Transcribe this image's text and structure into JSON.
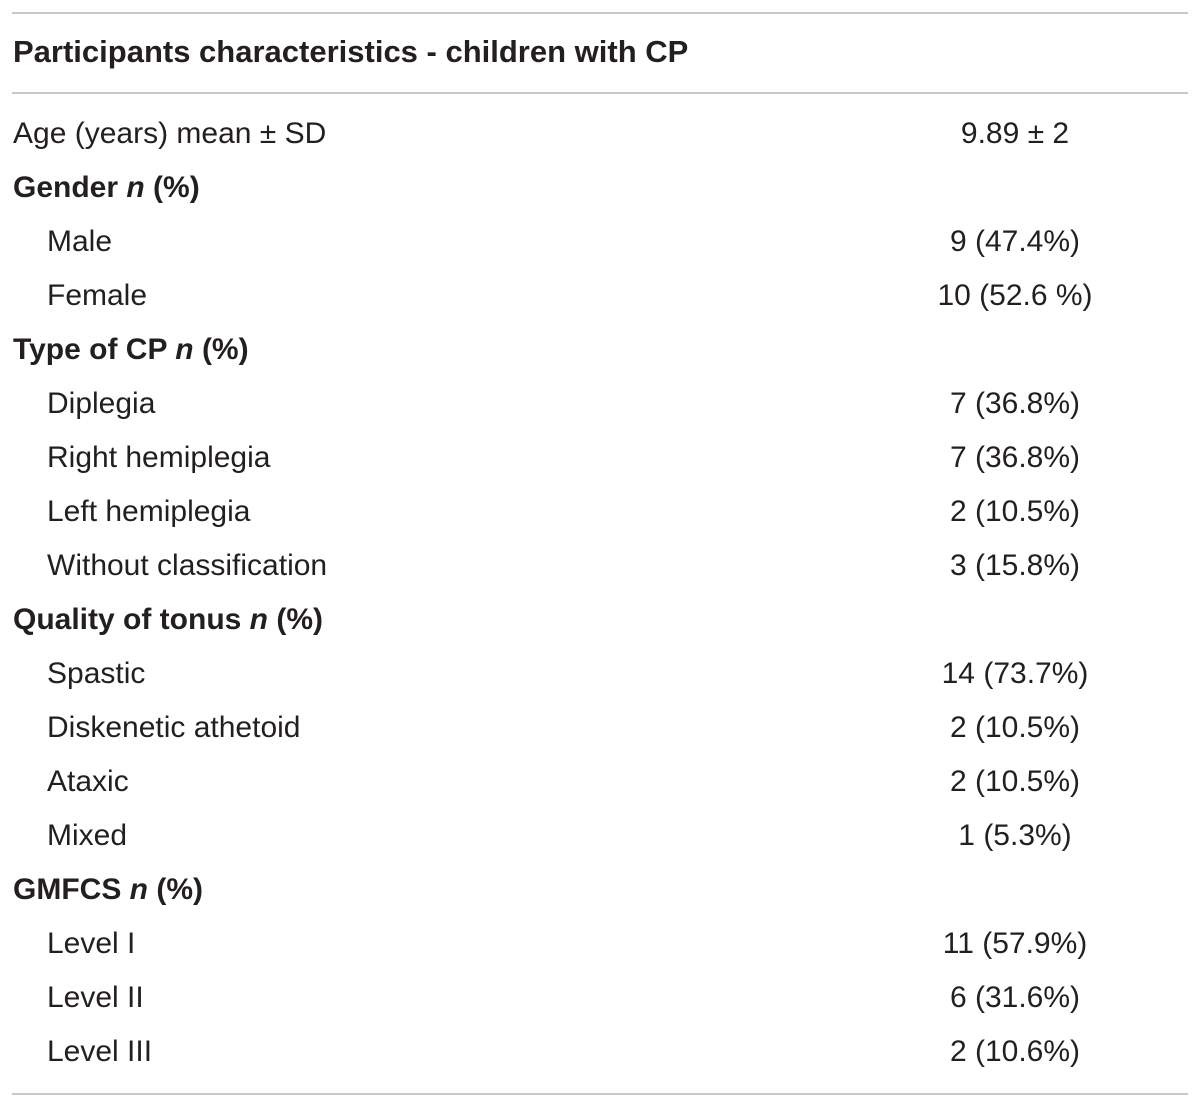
{
  "table": {
    "title": "Participants characteristics - children with CP",
    "rows": [
      {
        "kind": "plain",
        "label": "Age (years) mean ± SD",
        "value": "9.89 ± 2"
      },
      {
        "kind": "header",
        "label": "Gender",
        "italic": "n",
        "suffix": "(%)",
        "value": ""
      },
      {
        "kind": "item",
        "label": "Male",
        "value": "9 (47.4%)"
      },
      {
        "kind": "item",
        "label": "Female",
        "value": "10 (52.6 %)"
      },
      {
        "kind": "header",
        "label": "Type of CP",
        "italic": "n",
        "suffix": "(%)",
        "value": ""
      },
      {
        "kind": "item",
        "label": "Diplegia",
        "value": "7 (36.8%)"
      },
      {
        "kind": "item",
        "label": "Right hemiplegia",
        "value": "7 (36.8%)"
      },
      {
        "kind": "item",
        "label": "Left hemiplegia",
        "value": "2 (10.5%)"
      },
      {
        "kind": "item",
        "label": "Without classification",
        "value": "3 (15.8%)"
      },
      {
        "kind": "header",
        "label": "Quality of tonus",
        "italic": "n",
        "suffix": "(%)",
        "value": ""
      },
      {
        "kind": "item",
        "label": "Spastic",
        "value": "14 (73.7%)"
      },
      {
        "kind": "item",
        "label": "Diskenetic athetoid",
        "value": "2 (10.5%)"
      },
      {
        "kind": "item",
        "label": "Ataxic",
        "value": "2 (10.5%)"
      },
      {
        "kind": "item",
        "label": "Mixed",
        "value": "1 (5.3%)"
      },
      {
        "kind": "header",
        "label": "GMFCS",
        "italic": "n",
        "suffix": "(%)",
        "value": ""
      },
      {
        "kind": "item",
        "label": "Level I",
        "value": "11 (57.9%)"
      },
      {
        "kind": "item",
        "label": "Level II",
        "value": "6 (31.6%)"
      },
      {
        "kind": "item",
        "label": "Level III",
        "value": "2 (10.6%)"
      }
    ]
  },
  "colors": {
    "text": "#231f20",
    "rule": "#c8c8c8"
  }
}
